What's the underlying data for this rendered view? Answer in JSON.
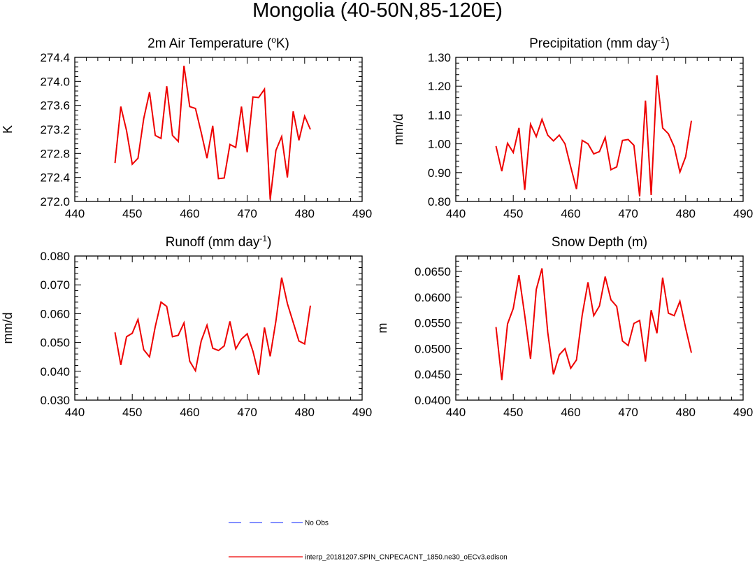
{
  "figure_title": "Mongolia (40-50N,85-120E)",
  "chart_data": [
    {
      "type": "line",
      "title_parts": [
        "2m Air Temperature (",
        "o",
        "K)"
      ],
      "ylabel": "K",
      "xlim": [
        440,
        490
      ],
      "xticks": [
        440,
        450,
        460,
        470,
        480,
        490
      ],
      "ylim": [
        272.0,
        274.4
      ],
      "yticks": [
        "272.0",
        "272.4",
        "272.8",
        "273.2",
        "273.6",
        "274.0",
        "274.4"
      ],
      "series": [
        {
          "name": "interp_20181207.SPIN_CNPECACNT_1850.ne30_oECv3.edison",
          "x": [
            447,
            448,
            449,
            450,
            451,
            452,
            453,
            454,
            455,
            456,
            457,
            458,
            459,
            460,
            461,
            462,
            463,
            464,
            465,
            466,
            467,
            468,
            469,
            470,
            471,
            472,
            473,
            474,
            475,
            476,
            477,
            478,
            479,
            480,
            481
          ],
          "values": [
            272.64,
            273.58,
            273.18,
            272.62,
            272.72,
            273.38,
            273.82,
            273.1,
            273.05,
            273.92,
            273.1,
            273.0,
            274.26,
            273.58,
            273.55,
            273.15,
            272.72,
            273.26,
            272.38,
            272.39,
            272.95,
            272.9,
            273.58,
            272.82,
            273.74,
            273.73,
            273.87,
            272.03,
            272.85,
            273.08,
            272.4,
            273.5,
            273.02,
            273.42,
            273.2
          ]
        }
      ]
    },
    {
      "type": "line",
      "title_parts": [
        "Precipitation (mm day",
        "-1",
        ")"
      ],
      "ylabel": "mm/d",
      "xlim": [
        440,
        490
      ],
      "xticks": [
        440,
        450,
        460,
        470,
        480,
        490
      ],
      "ylim": [
        0.8,
        1.3
      ],
      "yticks": [
        "0.80",
        "0.90",
        "1.00",
        "1.10",
        "1.20",
        "1.30"
      ],
      "series": [
        {
          "name": "interp_20181207.SPIN_CNPECACNT_1850.ne30_oECv3.edison",
          "x": [
            447,
            448,
            449,
            450,
            451,
            452,
            453,
            454,
            455,
            456,
            457,
            458,
            459,
            460,
            461,
            462,
            463,
            464,
            465,
            466,
            467,
            468,
            469,
            470,
            471,
            472,
            473,
            474,
            475,
            476,
            477,
            478,
            479,
            480,
            481
          ],
          "values": [
            0.992,
            0.905,
            1.002,
            0.97,
            1.055,
            0.84,
            1.068,
            1.025,
            1.085,
            1.03,
            1.01,
            1.03,
            1.0,
            0.92,
            0.843,
            1.012,
            1.0,
            0.965,
            0.973,
            1.022,
            0.91,
            0.92,
            1.012,
            1.015,
            0.995,
            0.818,
            1.15,
            0.822,
            1.238,
            1.055,
            1.035,
            0.99,
            0.902,
            0.955,
            1.08
          ]
        }
      ]
    },
    {
      "type": "line",
      "title_parts": [
        "Runoff (mm day",
        "-1",
        ")"
      ],
      "ylabel": "mm/d",
      "xlim": [
        440,
        490
      ],
      "xticks": [
        440,
        450,
        460,
        470,
        480,
        490
      ],
      "ylim": [
        0.03,
        0.08
      ],
      "yticks": [
        "0.030",
        "0.040",
        "0.050",
        "0.060",
        "0.070",
        "0.080"
      ],
      "series": [
        {
          "name": "interp_20181207.SPIN_CNPECACNT_1850.ne30_oECv3.edison",
          "x": [
            447,
            448,
            449,
            450,
            451,
            452,
            453,
            454,
            455,
            456,
            457,
            458,
            459,
            460,
            461,
            462,
            463,
            464,
            465,
            466,
            467,
            468,
            469,
            470,
            471,
            472,
            473,
            474,
            475,
            476,
            477,
            478,
            479,
            480,
            481
          ],
          "values": [
            0.0535,
            0.0422,
            0.052,
            0.0532,
            0.058,
            0.0475,
            0.045,
            0.0555,
            0.064,
            0.0625,
            0.052,
            0.0525,
            0.0568,
            0.0435,
            0.0402,
            0.0505,
            0.056,
            0.048,
            0.0472,
            0.0488,
            0.0573,
            0.0478,
            0.0512,
            0.053,
            0.047,
            0.0388,
            0.0552,
            0.0452,
            0.0575,
            0.0725,
            0.0635,
            0.057,
            0.0505,
            0.0495,
            0.0628
          ]
        }
      ]
    },
    {
      "type": "line",
      "title_parts": [
        "Snow Depth (m)"
      ],
      "ylabel": "m",
      "xlim": [
        440,
        490
      ],
      "xticks": [
        440,
        450,
        460,
        470,
        480,
        490
      ],
      "ylim": [
        0.04,
        0.068
      ],
      "yticks": [
        "0.0400",
        "0.0450",
        "0.0500",
        "0.0550",
        "0.0600",
        "0.0650"
      ],
      "series": [
        {
          "name": "interp_20181207.SPIN_CNPECACNT_1850.ne30_oECv3.edison",
          "x": [
            447,
            448,
            449,
            450,
            451,
            452,
            453,
            454,
            455,
            456,
            457,
            458,
            459,
            460,
            461,
            462,
            463,
            464,
            465,
            466,
            467,
            468,
            469,
            470,
            471,
            472,
            473,
            474,
            475,
            476,
            477,
            478,
            479,
            480,
            481
          ],
          "values": [
            0.0542,
            0.0439,
            0.0548,
            0.0578,
            0.0643,
            0.0565,
            0.048,
            0.0615,
            0.0656,
            0.0532,
            0.045,
            0.0488,
            0.05,
            0.0462,
            0.0478,
            0.0565,
            0.0629,
            0.0564,
            0.0583,
            0.064,
            0.0595,
            0.0582,
            0.0515,
            0.0506,
            0.0549,
            0.0555,
            0.0475,
            0.0575,
            0.053,
            0.0638,
            0.0569,
            0.0564,
            0.0592,
            0.054,
            0.0492
          ]
        }
      ]
    }
  ],
  "legend": {
    "items": [
      {
        "label": "No Obs",
        "color": "#5a6bff",
        "style": "dashed"
      },
      {
        "label": "interp_20181207.SPIN_CNPECACNT_1850.ne30_oECv3.edison",
        "color": "#ee0000",
        "style": "solid"
      }
    ]
  },
  "colors": {
    "series": "#ee0000",
    "axis": "#000000"
  }
}
